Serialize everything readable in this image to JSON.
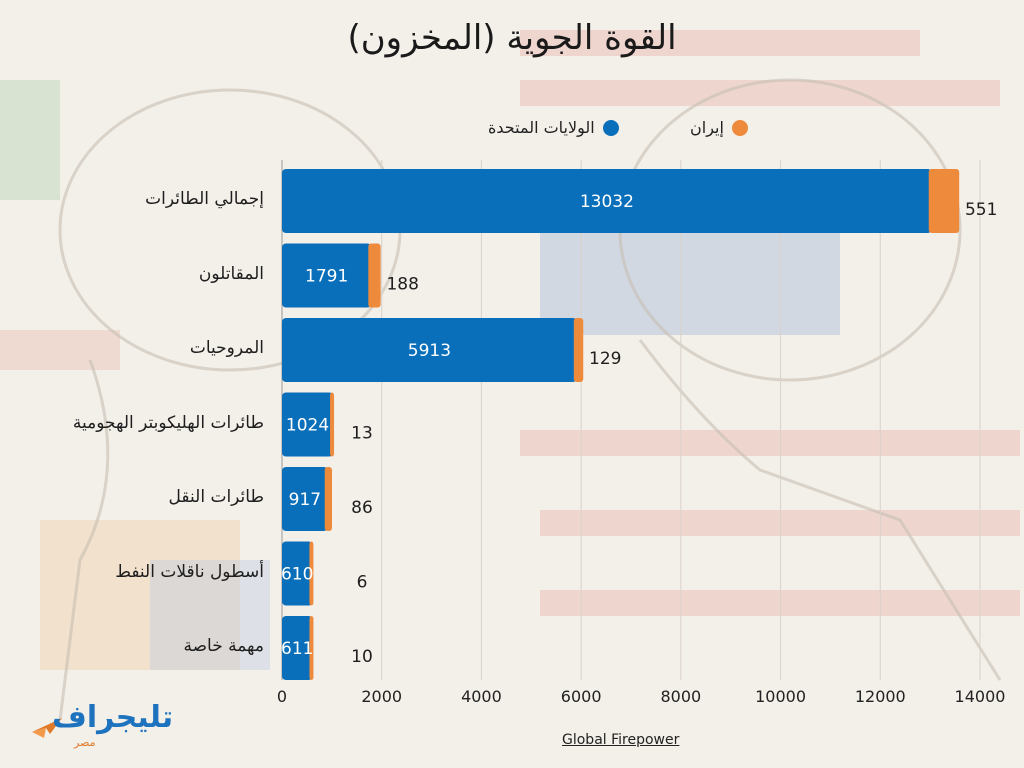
{
  "title": "القوة الجوية (المخزون)",
  "legend": {
    "us": "الولايات المتحدة",
    "iran": "إيران"
  },
  "colors": {
    "us": "#0a6fba",
    "iran": "#ee8a3c"
  },
  "source": "Global Firepower",
  "logo": {
    "main": "تليجراف",
    "sub": "مصر"
  },
  "chart_data": {
    "type": "bar",
    "orientation": "horizontal",
    "stacked": true,
    "title": "القوة الجوية (المخزون)",
    "categories": [
      "إجمالي الطائرات",
      "المقاتلون",
      "المروحيات",
      "طائرات الهليكوبتر الهجومية",
      "طائرات النقل",
      "أسطول ناقلات النفط",
      "مهمة خاصة"
    ],
    "series": [
      {
        "name": "الولايات المتحدة",
        "key": "us",
        "values": [
          13032,
          1791,
          5913,
          1024,
          917,
          610,
          611
        ]
      },
      {
        "name": "إيران",
        "key": "iran",
        "values": [
          551,
          188,
          129,
          13,
          86,
          6,
          10
        ]
      }
    ],
    "xlim": [
      0,
      14000
    ],
    "xticks": [
      0,
      2000,
      4000,
      6000,
      8000,
      10000,
      12000,
      14000
    ],
    "grid": true,
    "legend_position": "top"
  }
}
